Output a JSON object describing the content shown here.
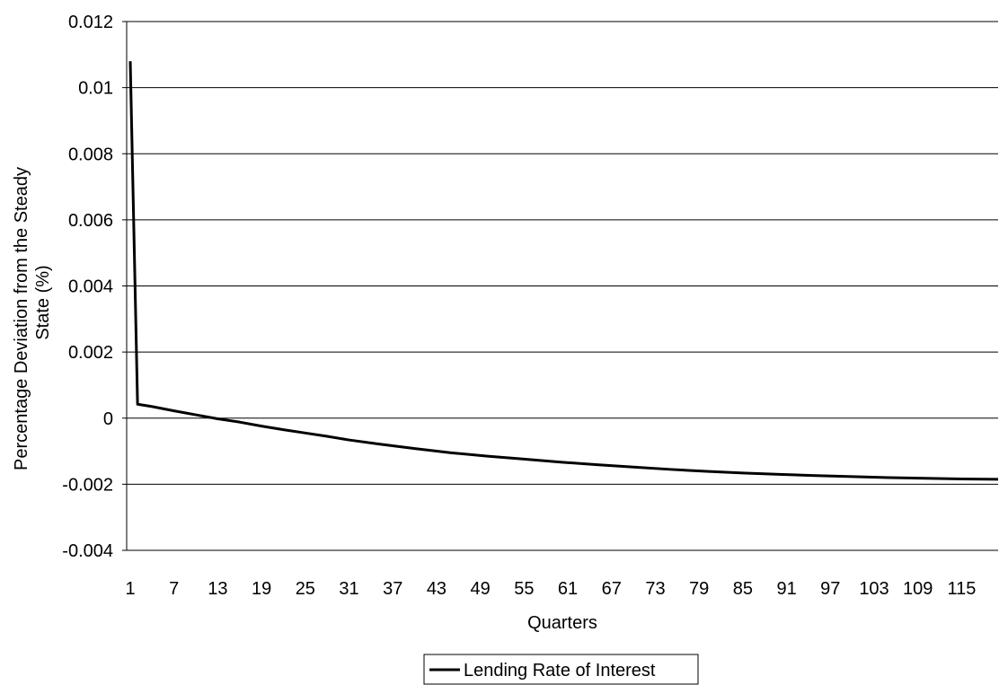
{
  "chart_data": {
    "type": "line",
    "title": "",
    "xlabel": "Quarters",
    "ylabel_lines": [
      "Percentage Deviation from the Steady",
      "State (%)"
    ],
    "ylim": [
      -0.004,
      0.012
    ],
    "xlim": [
      1,
      120
    ],
    "yticks": [
      "0.012",
      "0.01",
      "0.008",
      "0.006",
      "0.004",
      "0.002",
      "0",
      "-0.002",
      "-0.004"
    ],
    "ytick_values": [
      0.012,
      0.01,
      0.008,
      0.006,
      0.004,
      0.002,
      0,
      -0.002,
      -0.004
    ],
    "xticks": [
      "1",
      "7",
      "13",
      "19",
      "25",
      "31",
      "37",
      "43",
      "49",
      "55",
      "61",
      "67",
      "73",
      "79",
      "85",
      "91",
      "97",
      "103",
      "109",
      "115"
    ],
    "xtick_values": [
      1,
      7,
      13,
      19,
      25,
      31,
      37,
      43,
      49,
      55,
      61,
      67,
      73,
      79,
      85,
      91,
      97,
      103,
      109,
      115
    ],
    "grid": "horizontal",
    "legend_position": "bottom-center",
    "series": [
      {
        "name": "Lending Rate of Interest",
        "color": "#000000",
        "x": [
          1,
          2,
          4,
          7,
          10,
          13,
          16,
          19,
          22,
          25,
          28,
          31,
          35,
          40,
          45,
          50,
          55,
          60,
          65,
          70,
          75,
          80,
          85,
          90,
          95,
          100,
          105,
          110,
          115,
          120
        ],
        "y": [
          0.0108,
          0.00042,
          0.00035,
          0.00022,
          0.0001,
          -2e-05,
          -0.00012,
          -0.00024,
          -0.00035,
          -0.00045,
          -0.00055,
          -0.00066,
          -0.00078,
          -0.00092,
          -0.00105,
          -0.00115,
          -0.00124,
          -0.00133,
          -0.00141,
          -0.00148,
          -0.00155,
          -0.00161,
          -0.00166,
          -0.0017,
          -0.00174,
          -0.00177,
          -0.0018,
          -0.00182,
          -0.00184,
          -0.00185
        ]
      }
    ]
  }
}
